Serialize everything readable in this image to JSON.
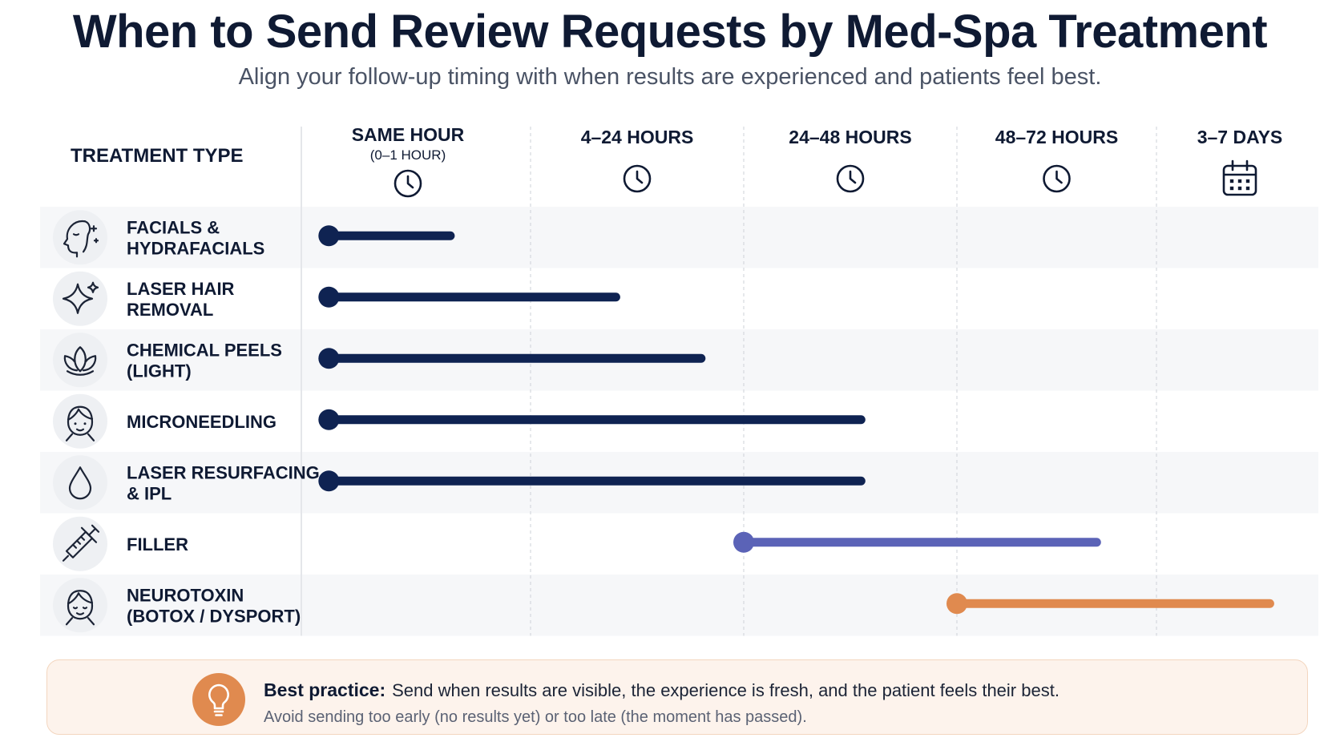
{
  "header": {
    "title": "When to Send Review Requests by Med-Spa Treatment",
    "subtitle": "Align your follow-up timing with when results are experienced and patients feel best."
  },
  "chart_data": {
    "type": "bar",
    "orientation": "horizontal-range",
    "row_header": "TREATMENT TYPE",
    "columns": [
      {
        "label": "SAME HOUR",
        "sublabel": "(0–1 HOUR)",
        "icon": "clock-icon"
      },
      {
        "label": "4–24 HOURS",
        "sublabel": "",
        "icon": "clock-icon"
      },
      {
        "label": "24–48 HOURS",
        "sublabel": "",
        "icon": "clock-icon"
      },
      {
        "label": "48–72 HOURS",
        "sublabel": "",
        "icon": "clock-icon"
      },
      {
        "label": "3–7 DAYS",
        "sublabel": "",
        "icon": "calendar-icon"
      }
    ],
    "rows": [
      {
        "lines": [
          "FACIALS &",
          "HYDRAFACIALS"
        ],
        "icon": "face-sparkle-icon",
        "start": 0.12,
        "end": 0.65,
        "color": "#0f2352"
      },
      {
        "lines": [
          "LASER HAIR",
          "REMOVAL"
        ],
        "icon": "sparkle-icon",
        "start": 0.12,
        "end": 1.4,
        "color": "#0f2352"
      },
      {
        "lines": [
          "CHEMICAL PEELS",
          "(LIGHT)"
        ],
        "icon": "lotus-icon",
        "start": 0.12,
        "end": 1.8,
        "color": "#0f2352"
      },
      {
        "lines": [
          "MICRONEEDLING"
        ],
        "icon": "face-icon",
        "start": 0.12,
        "end": 2.55,
        "color": "#0f2352"
      },
      {
        "lines": [
          "LASER RESURFACING",
          "& IPL"
        ],
        "icon": "droplet-icon",
        "start": 0.12,
        "end": 2.55,
        "color": "#0f2352"
      },
      {
        "lines": [
          "FILLER"
        ],
        "icon": "syringe-icon",
        "start": 2.0,
        "end": 3.7,
        "color": "#5b63b7"
      },
      {
        "lines": [
          "NEUROTOXIN",
          "(BOTOX / DYSPORT)"
        ],
        "icon": "face-calm-icon",
        "start": 3.0,
        "end": 4.7,
        "color": "#e08a4f"
      }
    ]
  },
  "tip": {
    "heading": "Best practice:",
    "text": "Send when results are visible, the experience is fresh, and the patient feels their best.",
    "subtext": "Avoid sending too early (no results yet) or too late (the moment has passed).",
    "icon": "lightbulb-icon",
    "accent": "#e08a4f"
  }
}
